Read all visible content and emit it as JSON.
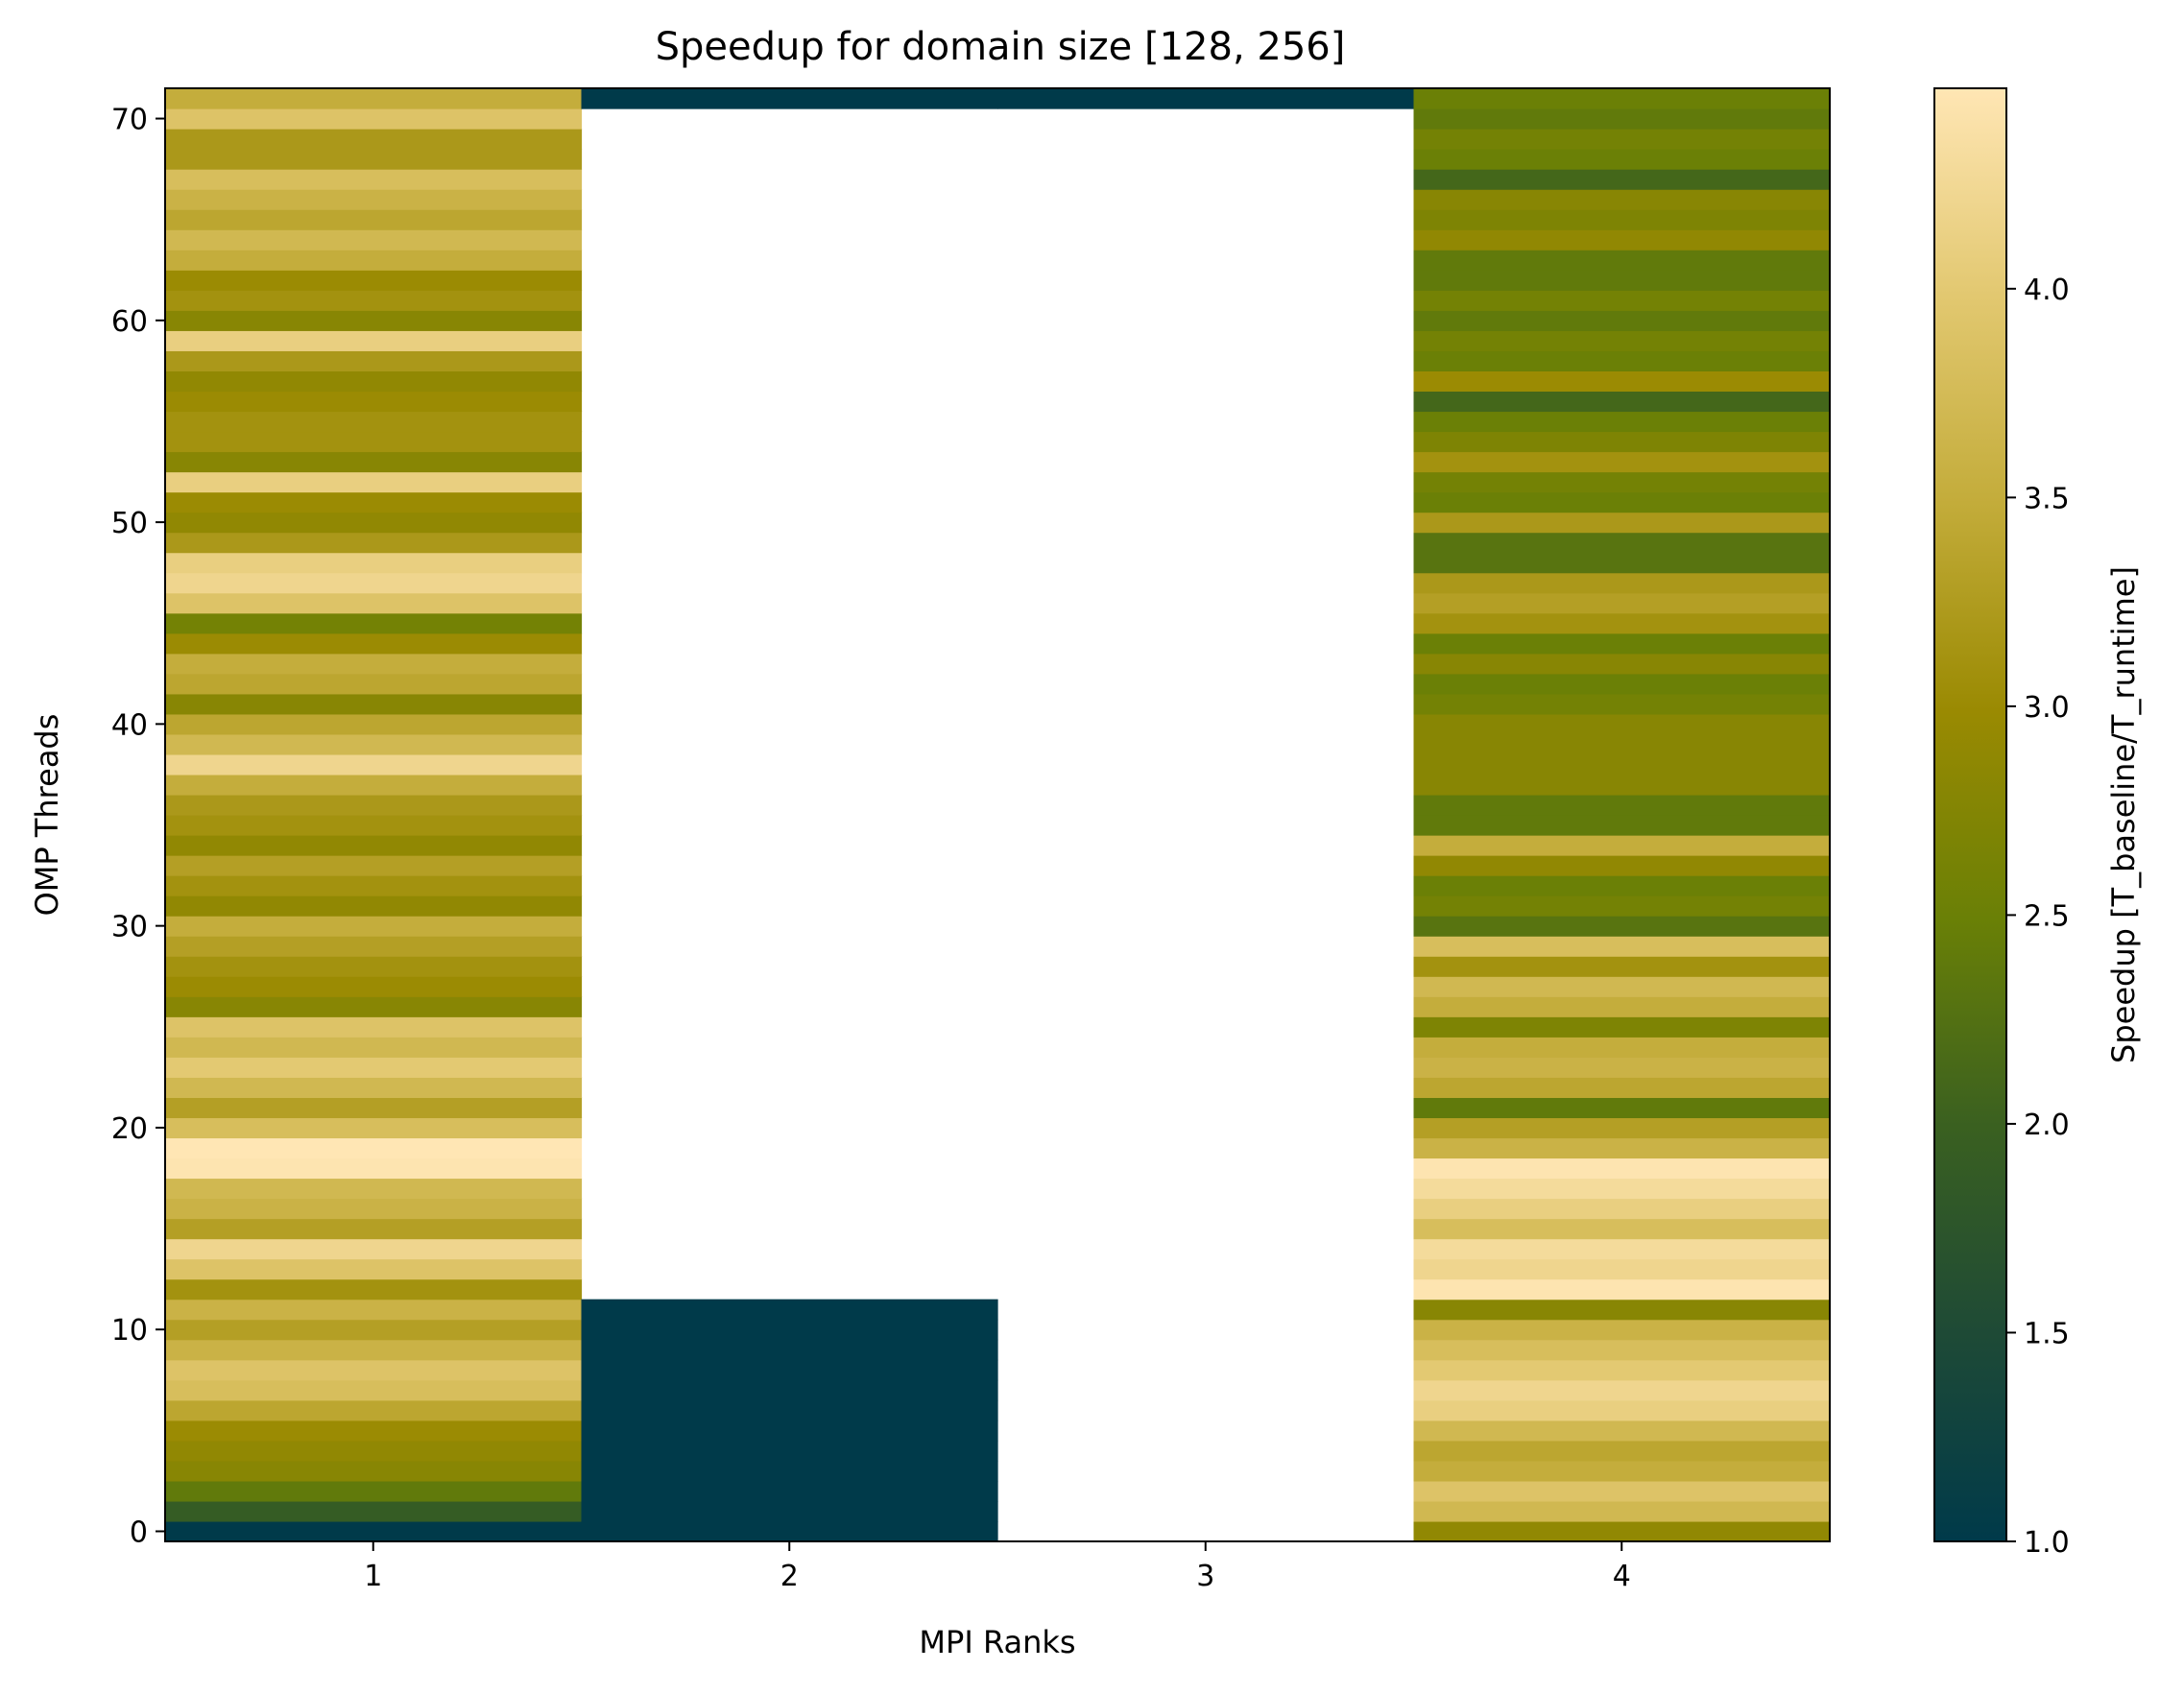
{
  "chart_data": {
    "type": "heatmap",
    "title": "Speedup for domain size [128, 256]",
    "xlabel": "MPI Ranks",
    "ylabel": "OMP Threads",
    "colorbar_label": "Speedup [T_baseline/T_runtime]",
    "x_categories": [
      1,
      2,
      3,
      4
    ],
    "xlim": [
      0.5,
      4.5
    ],
    "ylim": [
      -0.5,
      71.5
    ],
    "x_ticks": [
      "1",
      "2",
      "3",
      "4"
    ],
    "y_ticks": [
      "0",
      "10",
      "20",
      "30",
      "40",
      "50",
      "60",
      "70"
    ],
    "color_range": [
      1.0,
      4.48
    ],
    "colorbar_ticks": [
      "1.0",
      "1.5",
      "2.0",
      "2.5",
      "3.0",
      "3.5",
      "4.0"
    ],
    "colormap": [
      "#003a4a",
      "#1e4a36",
      "#3a6020",
      "#6a8006",
      "#9a8a02",
      "#c3ac3a",
      "#e2c870",
      "#ffe6b4"
    ],
    "grid": false,
    "columns": [
      {
        "mpi_ranks": 1,
        "omp_threads": [
          0,
          1,
          2,
          3,
          4,
          5,
          6,
          7,
          8,
          9,
          10,
          11,
          12,
          13,
          14,
          15,
          16,
          17,
          18,
          19,
          20,
          21,
          22,
          23,
          24,
          25,
          26,
          27,
          28,
          29,
          30,
          31,
          32,
          33,
          34,
          35,
          36,
          37,
          38,
          39,
          40,
          41,
          42,
          43,
          44,
          45,
          46,
          47,
          48,
          49,
          50,
          51,
          52,
          53,
          54,
          55,
          56,
          57,
          58,
          59,
          60,
          61,
          62,
          63,
          64,
          65,
          66,
          67,
          68,
          69,
          70,
          71
        ],
        "speedup": [
          1.0,
          1.9,
          2.4,
          2.8,
          2.9,
          3.0,
          3.4,
          3.8,
          3.9,
          3.6,
          3.3,
          3.6,
          3.1,
          3.9,
          4.2,
          3.3,
          3.6,
          3.7,
          4.45,
          4.48,
          3.8,
          3.3,
          3.7,
          4.0,
          3.7,
          3.9,
          2.8,
          3.0,
          3.1,
          3.3,
          3.5,
          2.9,
          3.1,
          3.3,
          2.9,
          3.1,
          3.2,
          3.5,
          4.2,
          3.7,
          3.4,
          2.8,
          3.4,
          3.5,
          3.0,
          2.6,
          3.9,
          4.2,
          4.1,
          3.2,
          2.9,
          3.0,
          4.1,
          2.8,
          3.1,
          3.1,
          3.0,
          2.9,
          3.2,
          4.1,
          2.8,
          3.1,
          3.0,
          3.5,
          3.7,
          3.4,
          3.6,
          3.8,
          3.2,
          3.2,
          3.9,
          3.5
        ]
      },
      {
        "mpi_ranks": 2,
        "omp_threads": [
          0,
          1,
          2,
          3,
          4,
          5,
          6,
          7,
          8,
          9,
          10,
          11,
          71
        ],
        "speedup": [
          1.0,
          1.0,
          1.0,
          1.0,
          1.0,
          1.0,
          1.0,
          1.0,
          1.0,
          1.0,
          1.0,
          1.0,
          1.0
        ]
      },
      {
        "mpi_ranks": 3,
        "omp_threads": [
          71
        ],
        "speedup": [
          1.0
        ]
      },
      {
        "mpi_ranks": 4,
        "omp_threads": [
          0,
          1,
          2,
          3,
          4,
          5,
          6,
          7,
          8,
          9,
          10,
          11,
          12,
          13,
          14,
          15,
          16,
          17,
          18,
          19,
          20,
          21,
          22,
          23,
          24,
          25,
          26,
          27,
          28,
          29,
          30,
          31,
          32,
          33,
          34,
          35,
          36,
          37,
          38,
          39,
          40,
          41,
          42,
          43,
          44,
          45,
          46,
          47,
          48,
          49,
          50,
          51,
          52,
          53,
          54,
          55,
          56,
          57,
          58,
          59,
          60,
          61,
          62,
          63,
          64,
          65,
          66,
          67,
          68,
          69,
          70,
          71
        ],
        "speedup": [
          2.9,
          3.7,
          3.9,
          3.5,
          3.4,
          3.7,
          4.1,
          4.2,
          4.0,
          3.8,
          3.6,
          2.8,
          4.45,
          4.2,
          4.3,
          3.8,
          4.1,
          4.3,
          4.45,
          3.6,
          3.3,
          2.4,
          3.4,
          3.6,
          3.5,
          2.7,
          3.5,
          3.7,
          3.1,
          3.8,
          2.3,
          2.6,
          2.5,
          2.9,
          3.5,
          2.4,
          2.4,
          2.8,
          2.8,
          2.8,
          2.8,
          2.6,
          2.5,
          2.8,
          2.5,
          3.1,
          3.3,
          3.2,
          2.3,
          2.3,
          3.2,
          2.5,
          2.6,
          3.1,
          2.7,
          2.5,
          2.1,
          3.0,
          2.5,
          2.6,
          2.4,
          2.6,
          2.4,
          2.4,
          2.9,
          2.7,
          2.8,
          2.1,
          2.5,
          2.6,
          2.4,
          2.5
        ]
      }
    ]
  }
}
